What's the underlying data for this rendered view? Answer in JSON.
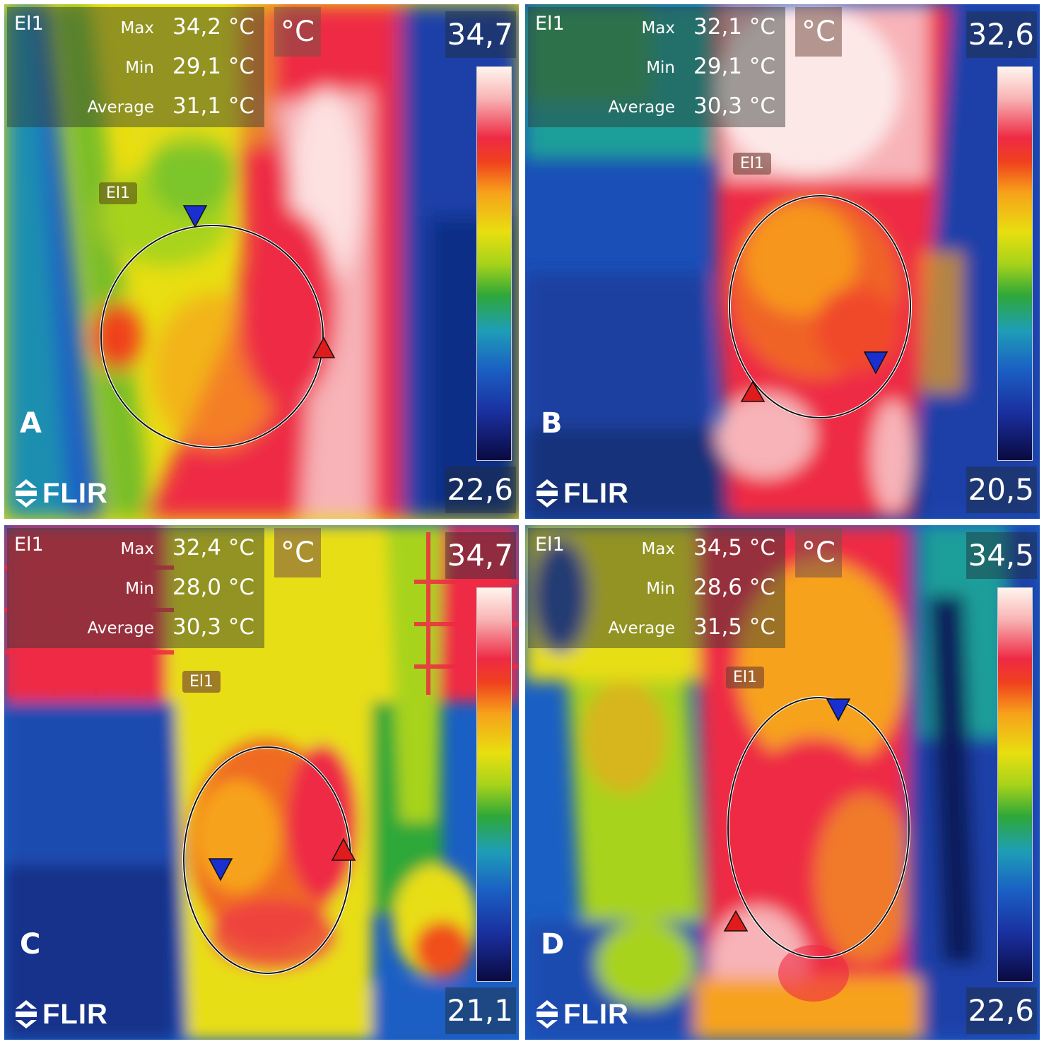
{
  "panels": [
    {
      "letter": "A",
      "el_tag": "El1",
      "el_label": "El1",
      "max_label": "Max",
      "max": "34,2 °C",
      "min_label": "Min",
      "min": "29,1 °C",
      "avg_label": "Average",
      "avg": "31,1 °C",
      "unit": "°C",
      "scale_top": "34,7",
      "scale_bottom": "22,6",
      "brand": "FLIR"
    },
    {
      "letter": "B",
      "el_tag": "El1",
      "el_label": "El1",
      "max_label": "Max",
      "max": "32,1 °C",
      "min_label": "Min",
      "min": "29,1 °C",
      "avg_label": "Average",
      "avg": "30,3 °C",
      "unit": "°C",
      "scale_top": "32,6",
      "scale_bottom": "20,5",
      "brand": "FLIR"
    },
    {
      "letter": "C",
      "el_tag": "El1",
      "el_label": "El1",
      "max_label": "Max",
      "max": "32,4 °C",
      "min_label": "Min",
      "min": "28,0 °C",
      "avg_label": "Average",
      "avg": "30,3 °C",
      "unit": "°C",
      "scale_top": "34,7",
      "scale_bottom": "21,1",
      "brand": "FLIR"
    },
    {
      "letter": "D",
      "el_tag": "El1",
      "el_label": "El1",
      "max_label": "Max",
      "max": "34,5 °C",
      "min_label": "Min",
      "min": "28,6 °C",
      "avg_label": "Average",
      "avg": "31,5 °C",
      "unit": "°C",
      "scale_top": "34,5",
      "scale_bottom": "22,6",
      "brand": "FLIR"
    }
  ],
  "colors": {
    "cold": "#0a1e6e",
    "blue": "#1a5fc4",
    "cyan": "#1e9eb6",
    "green": "#2fa838",
    "yellow": "#e8df10",
    "orange": "#f7a21a",
    "red": "#ee2a44",
    "white_hot": "#fff5ee",
    "max_marker": "#e01b1b",
    "min_marker": "#1a2fd0"
  }
}
